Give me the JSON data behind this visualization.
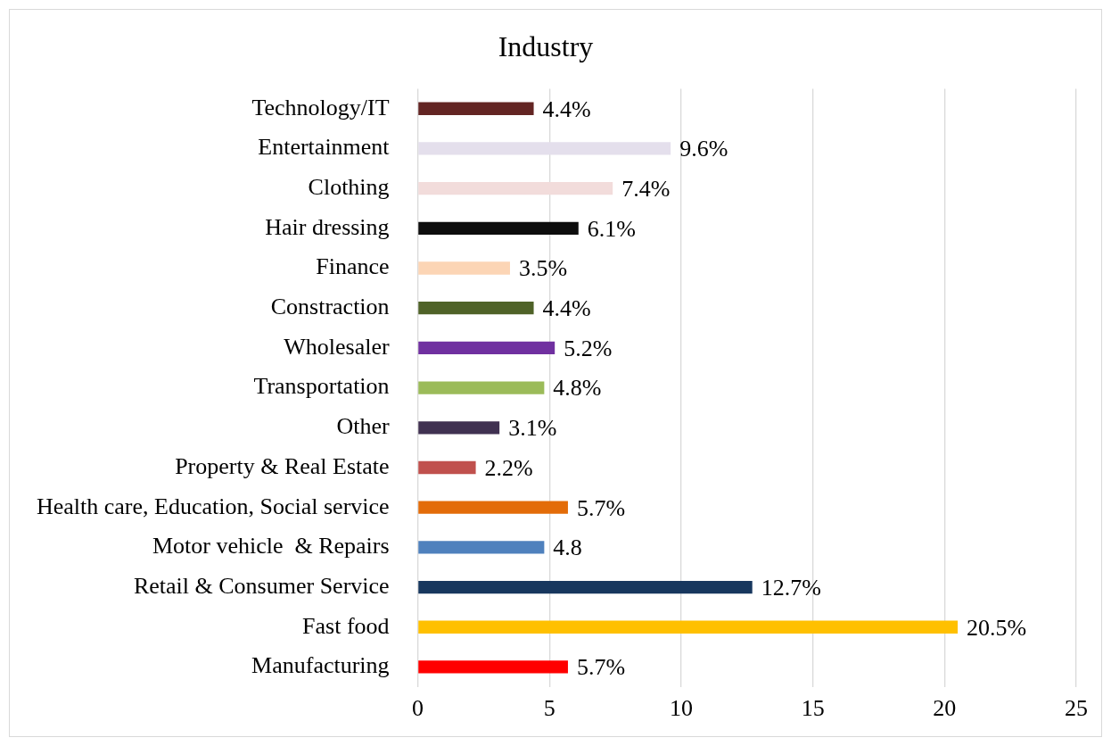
{
  "chart_data": {
    "type": "bar",
    "orientation": "horizontal",
    "title": "Industry",
    "categories": [
      "Technology/IT",
      "Entertainment",
      "Clothing",
      "Hair dressing",
      "Finance",
      "Constraction",
      "Wholesaler",
      "Transportation",
      "Other",
      "Property & Real Estate",
      "Health care, Education, Social service",
      "Motor vehicle  & Repairs",
      "Retail & Consumer Service",
      "Fast food",
      "Manufacturing"
    ],
    "values": [
      4.4,
      9.6,
      7.4,
      6.1,
      3.5,
      4.4,
      5.2,
      4.8,
      3.1,
      2.2,
      5.7,
      4.8,
      12.7,
      20.5,
      5.7
    ],
    "colors": [
      "#632523",
      "#e4dfec",
      "#f2dcdb",
      "#0d0d0d",
      "#fcd5b5",
      "#4f6228",
      "#7030a0",
      "#9bbb59",
      "#403151",
      "#c0504d",
      "#e36c09",
      "#4f81bd",
      "#17375e",
      "#ffc000",
      "#ff0000"
    ],
    "value_labels": [
      "4.4%",
      "9.6%",
      "7.4%",
      "6.1%",
      "3.5%",
      "4.4%",
      "5.2%",
      "4.8%",
      "3.1%",
      "2.2%",
      "5.7%",
      "4.8",
      "12.7%",
      "20.5%",
      "5.7%"
    ],
    "xlim": [
      0,
      25
    ],
    "xticks": [
      0,
      5,
      10,
      15,
      20,
      25
    ],
    "grid": "x"
  }
}
